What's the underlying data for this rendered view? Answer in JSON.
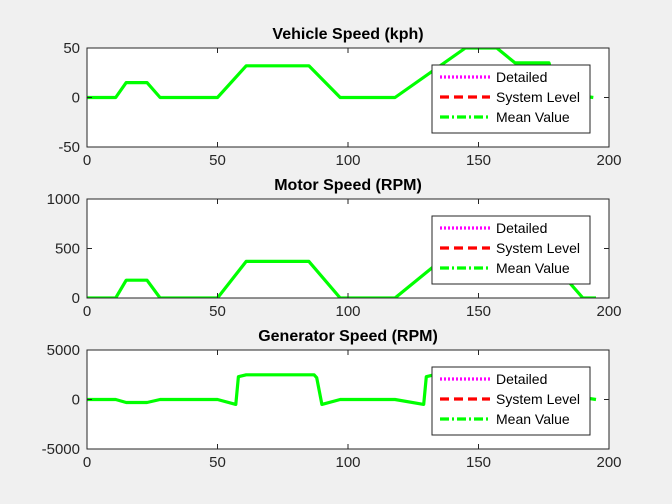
{
  "figure": {
    "background": "#f0f0f0"
  },
  "legend": {
    "placement": "right, over data",
    "entries": [
      {
        "label": "Detailed",
        "color": "#ff00ff",
        "style": "dotted"
      },
      {
        "label": "System Level",
        "color": "#ff0000",
        "style": "dashed"
      },
      {
        "label": "Mean Value",
        "color": "#00ff00",
        "style": "dash-dot"
      }
    ]
  },
  "chart_data": [
    {
      "type": "line",
      "title": "Vehicle Speed (kph)",
      "xlim": [
        0,
        200
      ],
      "ylim": [
        -50,
        50
      ],
      "xticks": [
        0,
        50,
        100,
        150,
        200
      ],
      "yticks": [
        -50,
        0,
        50
      ],
      "grid": false,
      "legend_placement": "right",
      "x": [
        0,
        11,
        15,
        23,
        28,
        50,
        61,
        85,
        97,
        118,
        145,
        157,
        164,
        177,
        180,
        194
      ],
      "series": [
        {
          "name": "Mean Value",
          "values": [
            0,
            0,
            15,
            15,
            0,
            0,
            32,
            32,
            0,
            0,
            50,
            50,
            35,
            35,
            5,
            0
          ]
        }
      ]
    },
    {
      "type": "line",
      "title": "Motor Speed (RPM)",
      "xlim": [
        0,
        200
      ],
      "ylim": [
        0,
        1000
      ],
      "xticks": [
        0,
        50,
        100,
        150,
        200
      ],
      "yticks": [
        0,
        500,
        1000
      ],
      "grid": false,
      "legend_placement": "right",
      "x": [
        0,
        11,
        15,
        23,
        28,
        50,
        61,
        85,
        97,
        118,
        145,
        157,
        164,
        177,
        185,
        190,
        195
      ],
      "series": [
        {
          "name": "Mean Value",
          "values": [
            0,
            0,
            180,
            180,
            0,
            0,
            370,
            370,
            0,
            0,
            580,
            580,
            400,
            400,
            150,
            0,
            0
          ]
        }
      ]
    },
    {
      "type": "line",
      "title": "Generator Speed (RPM)",
      "xlim": [
        0,
        200
      ],
      "ylim": [
        -5000,
        5000
      ],
      "xticks": [
        0,
        50,
        100,
        150,
        200
      ],
      "yticks": [
        -5000,
        0,
        5000
      ],
      "grid": false,
      "legend_placement": "right",
      "x": [
        0,
        11,
        15,
        23,
        28,
        50,
        57,
        58,
        61,
        87,
        88,
        90,
        97,
        118,
        129,
        130,
        133,
        195
      ],
      "series": [
        {
          "name": "Mean Value",
          "values": [
            0,
            0,
            -300,
            -300,
            0,
            0,
            -500,
            2300,
            2500,
            2500,
            2200,
            -500,
            0,
            0,
            -500,
            2300,
            2500,
            0
          ]
        }
      ]
    }
  ]
}
